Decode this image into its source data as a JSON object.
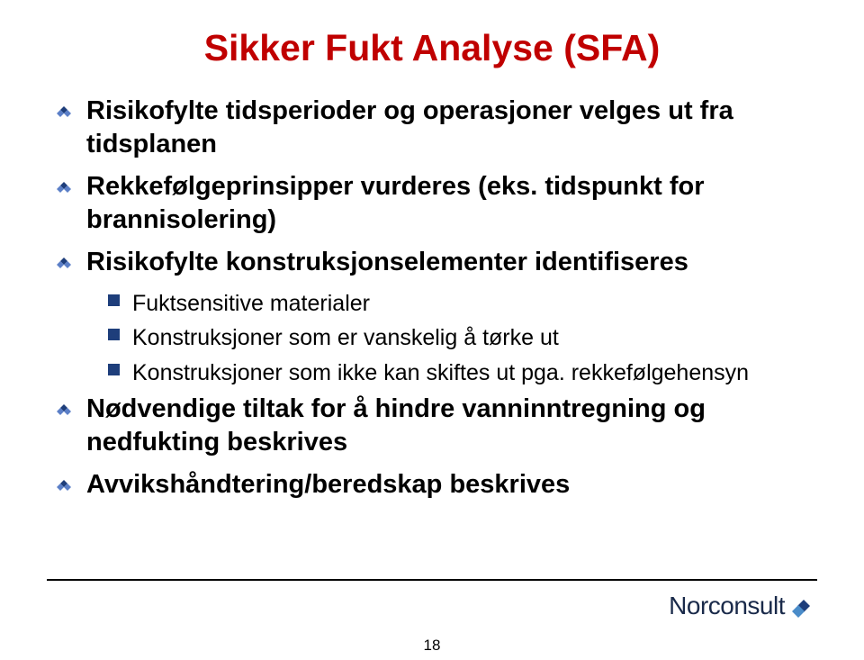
{
  "title": {
    "text": "Sikker Fukt Analyse (SFA)",
    "color": "#c00000",
    "fontsize": 41
  },
  "colors": {
    "bullet_diamond_dark": "#1e3e7b",
    "bullet_diamond_light": "#5b7fc7",
    "bullet_square": "#1e3e7b",
    "body_text": "#000000",
    "logo_text": "#1a2a4a",
    "logo_diamond_dark": "#1e3e7b",
    "logo_diamond_light": "#4a8cc9"
  },
  "body": {
    "lvl1_fontsize": 29,
    "lvl2_fontsize": 25,
    "items": [
      {
        "level": 1,
        "text": "Risikofylte tidsperioder og operasjoner velges ut fra tidsplanen"
      },
      {
        "level": 1,
        "text": "Rekkefølgeprinsipper vurderes (eks. tidspunkt for brannisolering)"
      },
      {
        "level": 1,
        "text": "Risikofylte konstruksjonselementer identifiseres"
      },
      {
        "level": 2,
        "text": "Fuktsensitive materialer"
      },
      {
        "level": 2,
        "text": "Konstruksjoner som er vanskelig å tørke ut"
      },
      {
        "level": 2,
        "text": "Konstruksjoner som ikke kan skiftes ut pga. rekkefølgehensyn"
      },
      {
        "level": 1,
        "text": "Nødvendige tiltak for å hindre vanninntregning og nedfukting beskrives"
      },
      {
        "level": 1,
        "text": "Avvikshåndtering/beredskap beskrives"
      }
    ]
  },
  "footer": {
    "page_number": "18",
    "logo_text": "Norconsult"
  }
}
